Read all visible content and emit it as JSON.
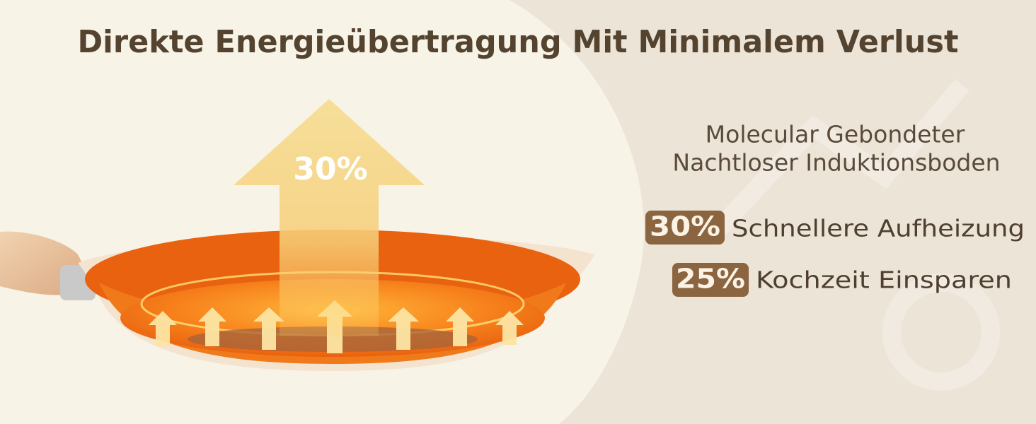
{
  "title": "Direkte Energieübertragung Mit Minimalem Verlust",
  "arrow_label": "30%",
  "subtitle": [
    "Molecular Gebondeter",
    "Nachtloser Induktionsboden"
  ],
  "features": [
    {
      "badge": "30%",
      "text": "Schnellere Aufheizung"
    },
    {
      "badge": "25%",
      "text": "Kochzeit Einsparen"
    }
  ]
}
